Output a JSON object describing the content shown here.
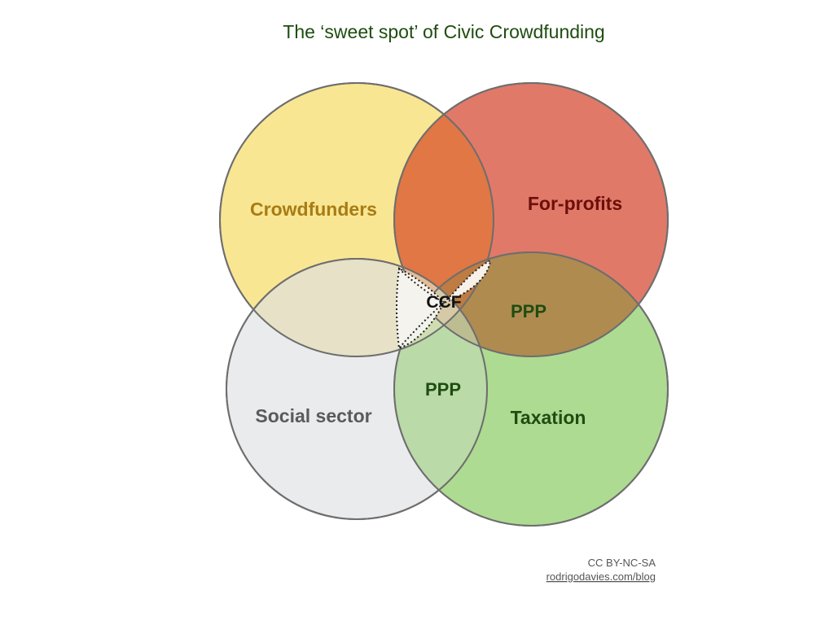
{
  "title": "The ‘sweet spot’ of Civic Crowdfunding",
  "circles": {
    "crowdfunders": {
      "label": "Crowdfunders",
      "fill": "#f6dd6a",
      "text_color": "#a87c14"
    },
    "for_profits": {
      "label": "For-profits",
      "fill": "#d9533f",
      "text_color": "#6b0f0a"
    },
    "social_sector": {
      "label": "Social sector",
      "fill": "#e2e3e6",
      "text_color": "#5a5a5a"
    },
    "taxation": {
      "label": "Taxation",
      "fill": "#8fcd68",
      "text_color": "#1f4d12"
    }
  },
  "overlaps": {
    "center": "CCF",
    "ppp_right": "PPP",
    "ppp_bottom": "PPP",
    "overlap_text_color": "#1f4d12"
  },
  "footer": {
    "license": "CC BY-NC-SA",
    "link": "rodrigodavies.com/blog"
  }
}
